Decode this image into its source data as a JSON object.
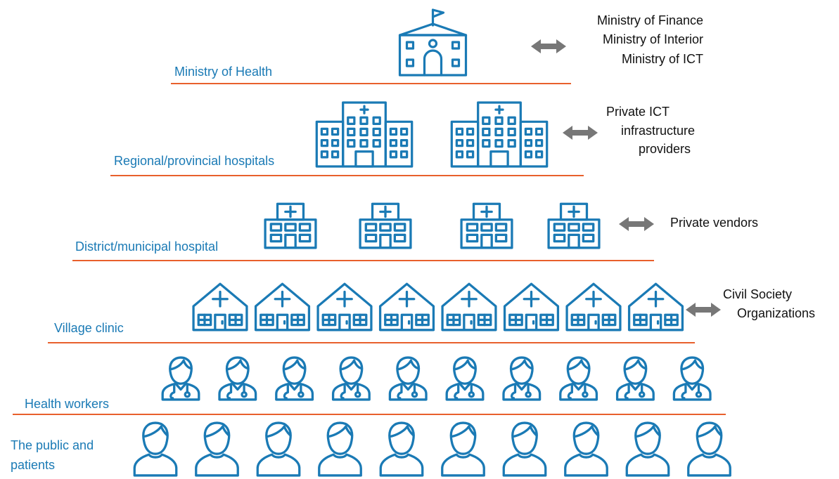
{
  "levels": [
    {
      "label": [
        "Ministry of Health"
      ],
      "partners": [
        "Ministry of Finance",
        "Ministry of Interior",
        "Ministry of ICT"
      ]
    },
    {
      "label": [
        "Regional/provincial hospitals"
      ],
      "partners": [
        "Private ICT",
        "infrastructure",
        "providers"
      ]
    },
    {
      "label": [
        "District/municipal hospital"
      ],
      "partners": [
        "Private vendors"
      ]
    },
    {
      "label": [
        "Village  clinic"
      ],
      "partners": [
        "Civil Society",
        "Organizations"
      ]
    },
    {
      "label": [
        "Health workers"
      ],
      "partners": []
    },
    {
      "label": [
        "The public and",
        "patients"
      ],
      "partners": []
    }
  ]
}
